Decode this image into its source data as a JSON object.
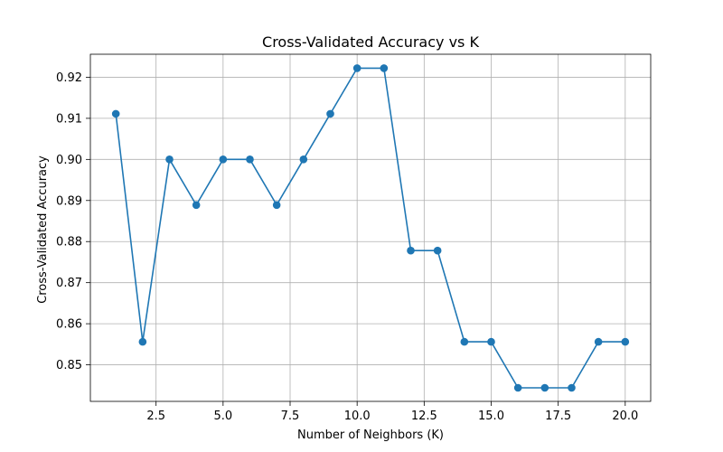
{
  "chart_data": {
    "type": "line",
    "title": "Cross-Validated Accuracy vs K",
    "xlabel": "Number of Neighbors (K)",
    "ylabel": "Cross-Validated Accuracy",
    "xlim": [
      0.05,
      20.95
    ],
    "ylim": [
      0.8411,
      0.9256
    ],
    "grid": true,
    "x_ticks": [
      2.5,
      5.0,
      7.5,
      10.0,
      12.5,
      15.0,
      17.5,
      20.0
    ],
    "x_tick_labels": [
      "2.5",
      "5.0",
      "7.5",
      "10.0",
      "12.5",
      "15.0",
      "17.5",
      "20.0"
    ],
    "y_ticks": [
      0.85,
      0.86,
      0.87,
      0.88,
      0.89,
      0.9,
      0.91,
      0.92
    ],
    "y_tick_labels": [
      "0.85",
      "0.86",
      "0.87",
      "0.88",
      "0.89",
      "0.90",
      "0.91",
      "0.92"
    ],
    "series": [
      {
        "color": "#1f77b4",
        "marker": "circle",
        "x": [
          1,
          2,
          3,
          4,
          5,
          6,
          7,
          8,
          9,
          10,
          11,
          12,
          13,
          14,
          15,
          16,
          17,
          18,
          19,
          20
        ],
        "values": [
          0.9111,
          0.8556,
          0.9,
          0.8889,
          0.9,
          0.9,
          0.8889,
          0.9,
          0.9111,
          0.9222,
          0.9222,
          0.8778,
          0.8778,
          0.8556,
          0.8556,
          0.8444,
          0.8444,
          0.8444,
          0.8556,
          0.8556
        ]
      }
    ]
  }
}
